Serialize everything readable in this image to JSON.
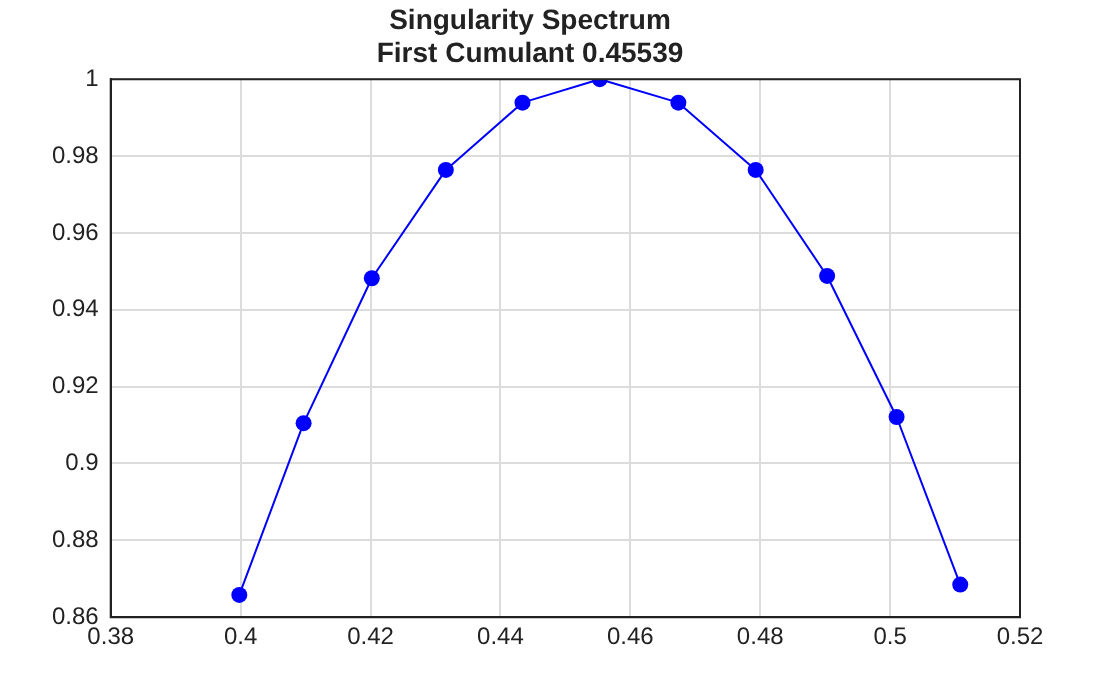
{
  "chart_data": {
    "type": "line",
    "title": "Singularity Spectrum",
    "subtitle": "First Cumulant 0.45539",
    "x": [
      0.3998,
      0.4097,
      0.4202,
      0.4316,
      0.4434,
      0.4553,
      0.4674,
      0.4793,
      0.4903,
      0.501,
      0.5108
    ],
    "series": [
      {
        "color": "#0000ff",
        "values": [
          0.8658,
          0.9105,
          0.9482,
          0.9764,
          0.9939,
          1.0,
          0.9939,
          0.9764,
          0.9488,
          0.9121,
          0.8685
        ]
      }
    ],
    "xlim": [
      0.38,
      0.52
    ],
    "xticks": [
      0.38,
      0.4,
      0.42,
      0.44,
      0.46,
      0.48,
      0.5,
      0.52
    ],
    "ylim": [
      0.86,
      1
    ],
    "yticks": [
      0.86,
      0.88,
      0.9,
      0.92,
      0.94,
      0.96,
      0.98,
      1
    ],
    "grid": true,
    "legend": false,
    "marker": "circle",
    "line_style": "solid"
  }
}
